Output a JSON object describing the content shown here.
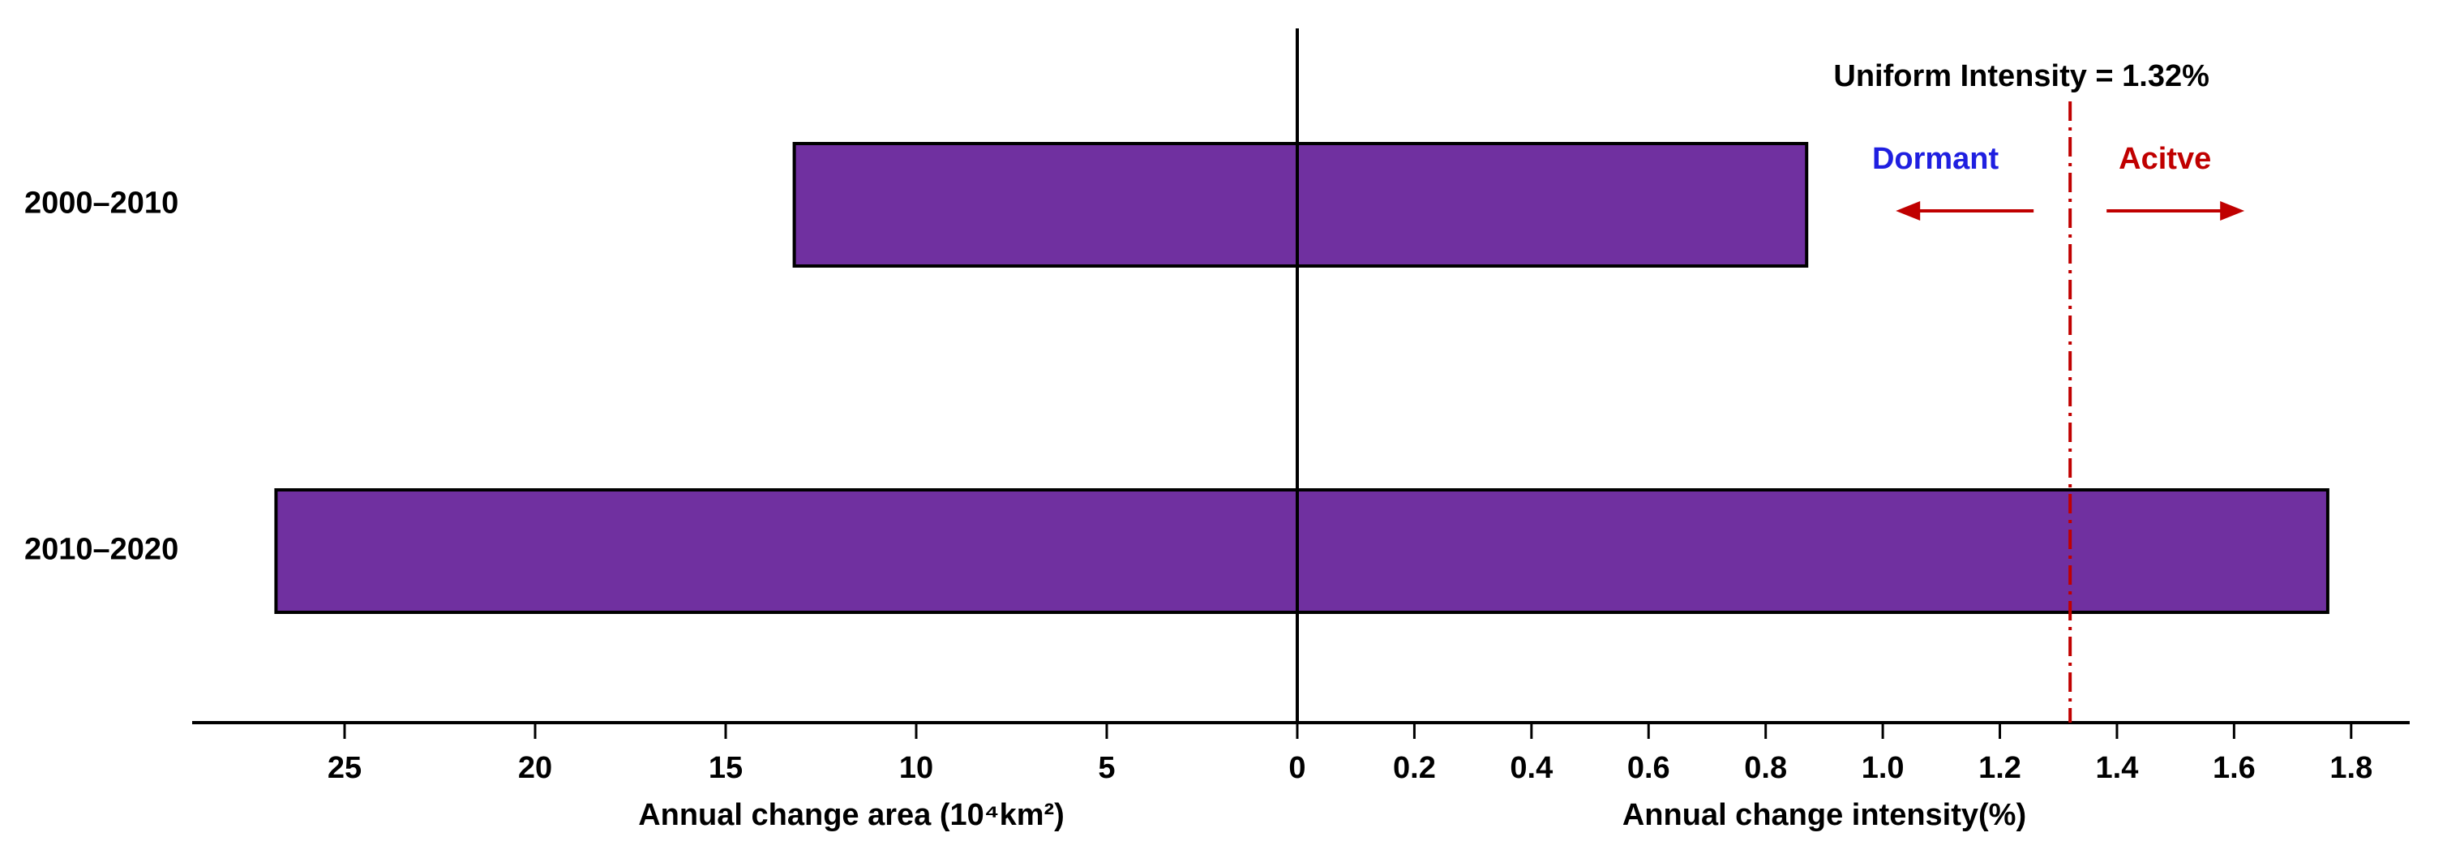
{
  "chart_data": {
    "type": "diverging_bar",
    "categories": [
      "2000–2010",
      "2010–2020"
    ],
    "series": [
      {
        "name": "Annual change area",
        "color": "#7030a0",
        "values": [
          13.2,
          26.8
        ],
        "side": "left"
      },
      {
        "name": "Annual change intensity",
        "color": "#7030a0",
        "values": [
          0.87,
          1.76
        ],
        "side": "right"
      }
    ],
    "xlabel_left": "Annual change area (10⁴km²)",
    "xlabel_right": "Annual change intensity(%)",
    "xlim": [
      0,
      29
    ],
    "xticks": [
      25,
      20,
      15,
      10,
      5,
      0
    ],
    "x2lim": [
      0,
      1.9
    ],
    "x2ticks": [
      0.2,
      0.4,
      0.6,
      0.8,
      {
        "value": 1.0,
        "label": "1.0"
      },
      1.2,
      1.4,
      1.6,
      1.8
    ],
    "reference_line": {
      "value": 1.32,
      "label": "Uniform Intensity = 1.32%",
      "color": "#c00000"
    },
    "annotations": [
      {
        "text": "Dormant",
        "color": "#1f1fe0"
      },
      {
        "text": "Acitve",
        "color": "#c00000"
      }
    ]
  }
}
